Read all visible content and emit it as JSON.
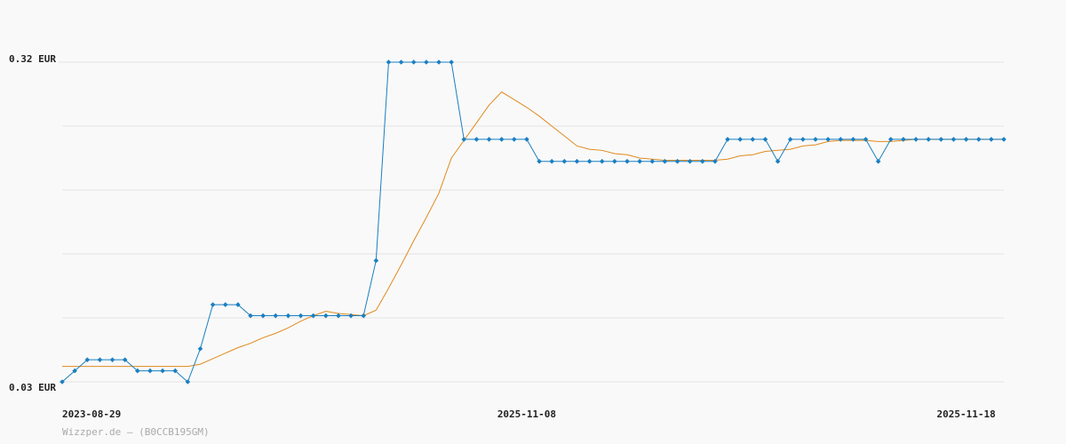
{
  "chart_data": {
    "type": "line",
    "categories": [
      "2023-08-29",
      null,
      null,
      null,
      null,
      null,
      null,
      null,
      null,
      null,
      null,
      null,
      null,
      null,
      null,
      null,
      null,
      null,
      null,
      null,
      null,
      null,
      null,
      null,
      null,
      null,
      null,
      null,
      null,
      null,
      null,
      null,
      null,
      null,
      null,
      null,
      null,
      "2025-11-08",
      null,
      null,
      null,
      null,
      null,
      null,
      null,
      null,
      null,
      null,
      null,
      null,
      null,
      null,
      null,
      null,
      null,
      null,
      null,
      null,
      null,
      null,
      null,
      null,
      null,
      null,
      null,
      null,
      null,
      null,
      null,
      null,
      null,
      null,
      "2025-11-18",
      null,
      null,
      null
    ],
    "series": [
      {
        "color": "#1a7fc1",
        "markers": true,
        "values": [
          0.03,
          0.04,
          0.05,
          0.05,
          0.05,
          0.05,
          0.04,
          0.04,
          0.04,
          0.04,
          0.03,
          0.06,
          0.1,
          0.1,
          0.1,
          0.09,
          0.09,
          0.09,
          0.09,
          0.09,
          0.09,
          0.09,
          0.09,
          0.09,
          0.09,
          0.14,
          0.32,
          0.32,
          0.32,
          0.32,
          0.32,
          0.32,
          0.25,
          0.25,
          0.25,
          0.25,
          0.25,
          0.25,
          0.23,
          0.23,
          0.23,
          0.23,
          0.23,
          0.23,
          0.23,
          0.23,
          0.23,
          0.23,
          0.23,
          0.23,
          0.23,
          0.23,
          0.23,
          0.25,
          0.25,
          0.25,
          0.25,
          0.23,
          0.25,
          0.25,
          0.25,
          0.25,
          0.25,
          0.25,
          0.25,
          0.23,
          0.25,
          0.25,
          0.25,
          0.25,
          0.25,
          0.25,
          0.25,
          0.25,
          0.25,
          0.25
        ]
      },
      {
        "color": "#e08a1e",
        "markers": false,
        "values": [
          0.044,
          0.044,
          0.044,
          0.044,
          0.044,
          0.044,
          0.044,
          0.044,
          0.044,
          0.044,
          0.044,
          0.046,
          0.051,
          0.056,
          0.061,
          0.065,
          0.07,
          0.074,
          0.079,
          0.085,
          0.09,
          0.094,
          0.092,
          0.091,
          0.09,
          0.095,
          0.115,
          0.136,
          0.158,
          0.179,
          0.201,
          0.233,
          0.249,
          0.265,
          0.281,
          0.293,
          0.286,
          0.279,
          0.271,
          0.262,
          0.253,
          0.244,
          0.241,
          0.24,
          0.237,
          0.236,
          0.233,
          0.232,
          0.231,
          0.231,
          0.231,
          0.231,
          0.231,
          0.232,
          0.235,
          0.236,
          0.239,
          0.24,
          0.241,
          0.244,
          0.245,
          0.248,
          0.249,
          0.249,
          0.249,
          0.248,
          0.248,
          0.249,
          0.25,
          0.25,
          0.25,
          0.25,
          0.25,
          0.25,
          0.25,
          0.25
        ]
      }
    ],
    "ylim": [
      0.03,
      0.32
    ],
    "yticks": [
      {
        "value": 0.03,
        "label": "0.03 EUR"
      },
      {
        "value": 0.32,
        "label": "0.32 EUR"
      }
    ],
    "ygrid": [
      0.03,
      0.088,
      0.146,
      0.204,
      0.262,
      0.32
    ],
    "grid": true,
    "footer": "Wizzper.de – (B0CCB195GM)"
  }
}
